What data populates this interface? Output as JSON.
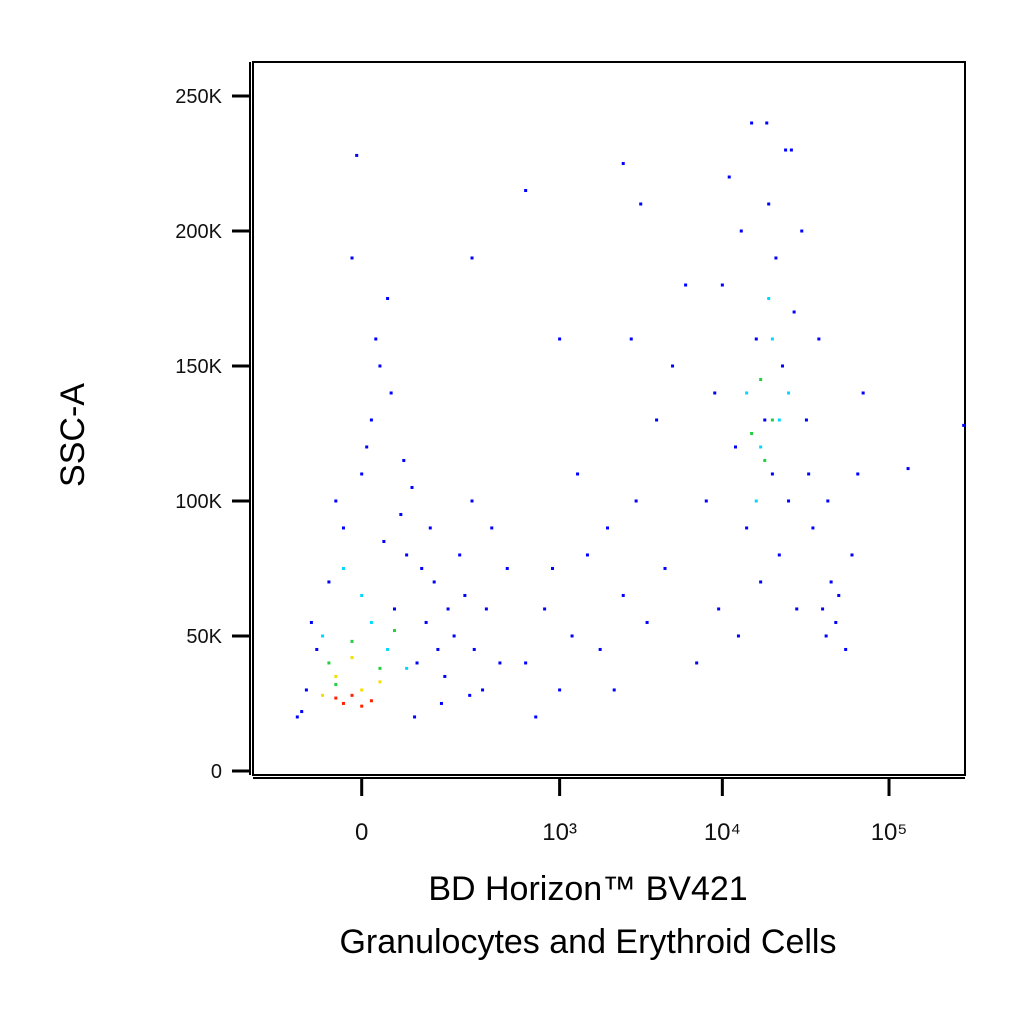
{
  "chart_data": {
    "type": "scatter",
    "xlabel": [
      "BD Horizon™ BV421",
      "Granulocytes and Erythroid Cells"
    ],
    "ylabel": "SSC-A",
    "xscale": "symlog",
    "xlinthresh": 70,
    "xlim": [
      -243,
      285000
    ],
    "xticks": [
      0,
      {
        "value": 1000,
        "label": "10³"
      },
      {
        "value": 10000,
        "label": "10⁴"
      },
      {
        "value": 100000,
        "label": "10⁵"
      }
    ],
    "ylim": [
      -1500,
      262600
    ],
    "yticks": [
      {
        "value": 0,
        "label": "0"
      },
      {
        "value": 50000,
        "label": "50K"
      },
      {
        "value": 100000,
        "label": "100K"
      },
      {
        "value": 150000,
        "label": "150K"
      },
      {
        "value": 200000,
        "label": "200K"
      },
      {
        "value": 250000,
        "label": "250K"
      }
    ],
    "series": [
      {
        "color": "#0000ff",
        "x": [
          -80,
          -60,
          -40,
          -20,
          0,
          10,
          20,
          30,
          -10,
          40,
          60,
          80,
          100,
          120,
          150,
          180,
          220,
          260,
          300,
          -90,
          -70,
          -30,
          5,
          25,
          50,
          70,
          90,
          110,
          140,
          200,
          250,
          320,
          400,
          450,
          -100,
          15,
          35,
          -5,
          55,
          75,
          130,
          160,
          240,
          350,
          600,
          800,
          1000,
          1200,
          1500,
          1800,
          2000,
          2500,
          3000,
          3500,
          4000,
          4500,
          5000,
          700,
          900,
          1300,
          2200,
          2800,
          1000,
          3200,
          2500,
          600,
          250,
          6000,
          7000,
          8000,
          9000,
          10000,
          11000,
          12000,
          13000,
          14000,
          15000,
          16000,
          17000,
          18000,
          19000,
          20000,
          21000,
          22000,
          23000,
          24000,
          25000,
          27000,
          28000,
          30000,
          32000,
          35000,
          38000,
          40000,
          42000,
          45000,
          48000,
          50000,
          55000,
          60000,
          65000,
          70000,
          9500,
          12500,
          18500,
          26000,
          33000,
          43000,
          130000,
          280000
        ],
        "values": [
          30000,
          45000,
          70000,
          90000,
          110000,
          130000,
          150000,
          175000,
          190000,
          60000,
          80000,
          40000,
          55000,
          70000,
          35000,
          50000,
          65000,
          45000,
          30000,
          22000,
          55000,
          100000,
          120000,
          85000,
          95000,
          105000,
          75000,
          90000,
          25000,
          80000,
          100000,
          60000,
          40000,
          75000,
          20000,
          160000,
          140000,
          228000,
          115000,
          20000,
          45000,
          60000,
          28000,
          90000,
          40000,
          60000,
          30000,
          50000,
          80000,
          45000,
          90000,
          65000,
          100000,
          55000,
          130000,
          75000,
          150000,
          20000,
          75000,
          110000,
          30000,
          160000,
          160000,
          210000,
          225000,
          215000,
          190000,
          180000,
          40000,
          100000,
          140000,
          180000,
          220000,
          120000,
          200000,
          90000,
          240000,
          160000,
          70000,
          130000,
          210000,
          110000,
          190000,
          80000,
          150000,
          230000,
          100000,
          170000,
          60000,
          200000,
          130000,
          90000,
          160000,
          60000,
          50000,
          70000,
          55000,
          65000,
          45000,
          80000,
          110000,
          140000,
          60000,
          50000,
          240000,
          230000,
          110000,
          100000,
          112000,
          128000
        ]
      },
      {
        "color": "#00d8ff",
        "x": [
          -50,
          0,
          30,
          60,
          -20,
          10,
          14000,
          17000,
          20000,
          22000,
          16000,
          19000,
          25000
        ],
        "values": [
          50000,
          65000,
          45000,
          38000,
          75000,
          55000,
          140000,
          120000,
          160000,
          130000,
          100000,
          175000,
          140000
        ]
      },
      {
        "color": "#20d040",
        "x": [
          -40,
          -10,
          20,
          40,
          -30,
          15000,
          18000,
          20000,
          17000
        ],
        "values": [
          40000,
          48000,
          38000,
          52000,
          32000,
          125000,
          115000,
          130000,
          145000
        ]
      },
      {
        "color": "#f0e000",
        "x": [
          -30,
          0,
          -10,
          20,
          -50
        ],
        "values": [
          35000,
          30000,
          42000,
          33000,
          28000
        ]
      },
      {
        "color": "#ff2000",
        "x": [
          -20,
          -10,
          0,
          -30,
          10
        ],
        "values": [
          25000,
          28000,
          24000,
          27000,
          26000
        ]
      }
    ]
  }
}
